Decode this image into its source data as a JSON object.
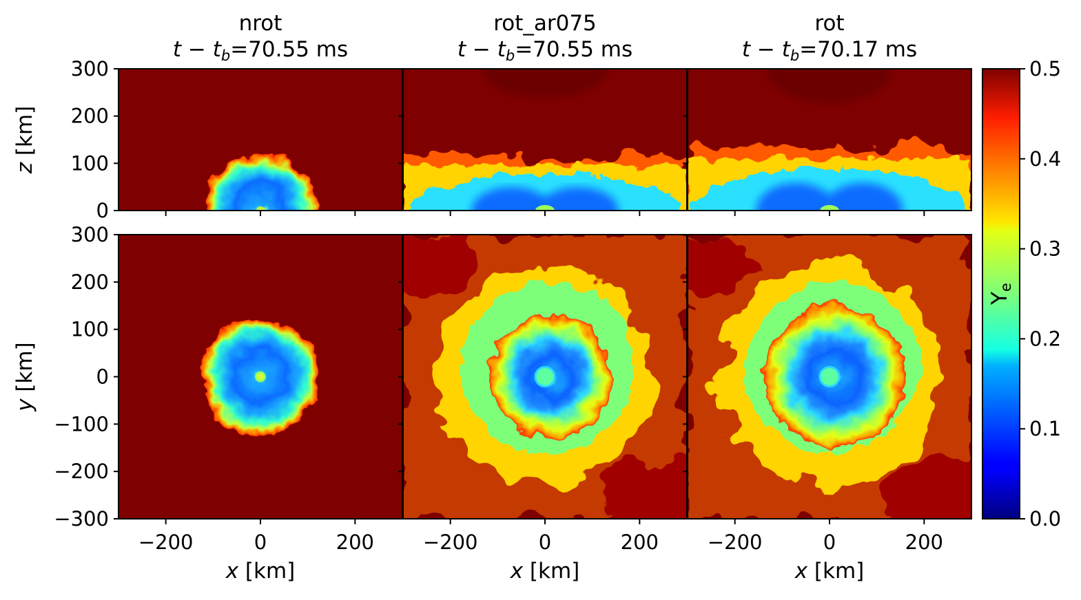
{
  "chart_data": {
    "type": "heatmap",
    "colormap": "jet",
    "panels": [
      {
        "title": "nrot",
        "time_value": "70.55 ms",
        "morphology": "spherical",
        "xz": {
          "outer_radius_km": 120,
          "core_radius_km": 90,
          "inner_radius_km": 55
        },
        "xy": {
          "outer_radius_km": 125,
          "core_radius_km": 100,
          "inner_radius_km": 60
        }
      },
      {
        "title": "rot_ar075",
        "time_value": "70.55 ms",
        "morphology": "spiral",
        "xz": {
          "shock_height_km": 110
        },
        "xy": {
          "spiral_extent_km": 300,
          "core_radius_km": 130
        }
      },
      {
        "title": "rot",
        "time_value": "70.17 ms",
        "morphology": "spiral",
        "xz": {
          "shock_height_km": 130
        },
        "xy": {
          "spiral_extent_km": 300,
          "core_radius_km": 150
        }
      }
    ],
    "time_label_prefix": "t − t",
    "time_label_sub": "b",
    "time_label_eq": "=",
    "top_row": {
      "ylabel_var": "z",
      "ylabel_unit": " [km]",
      "ylim": [
        0,
        300
      ],
      "yticks": [
        "0",
        "100",
        "200",
        "300"
      ]
    },
    "bottom_row": {
      "ylabel_var": "y",
      "ylabel_unit": " [km]",
      "ylim": [
        -300,
        300
      ],
      "yticks": [
        "−300",
        "−200",
        "−100",
        "0",
        "100",
        "200",
        "300"
      ]
    },
    "xlabel_var": "x",
    "xlabel_unit": " [km]",
    "xlim": [
      -300,
      300
    ],
    "xticks": [
      "−200",
      "0",
      "200"
    ],
    "colorbar": {
      "label_main": "Y",
      "label_sub": "e",
      "range": [
        0.0,
        0.5
      ],
      "ticks": [
        "0.0",
        "0.1",
        "0.2",
        "0.3",
        "0.4",
        "0.5"
      ]
    }
  }
}
